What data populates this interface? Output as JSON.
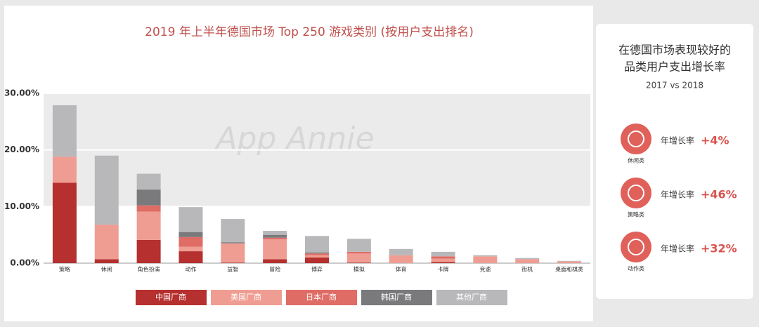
{
  "chart_data": {
    "type": "stacked_bar",
    "title": "2019 年上半年德国市场 Top 250 游戏类别 (按用户支出排名)",
    "watermark": "App Annie",
    "categories": [
      "策略",
      "休闲",
      "角色扮演",
      "动作",
      "益智",
      "冒险",
      "博弈",
      "模拟",
      "体育",
      "卡牌",
      "竞速",
      "街机",
      "桌面和棋类"
    ],
    "series": [
      {
        "name": "中国厂商",
        "color": "#b5302e",
        "values": [
          14.2,
          0.7,
          4.1,
          2.1,
          0.1,
          0.7,
          1.0,
          0.1,
          0,
          0.2,
          0,
          0,
          0
        ]
      },
      {
        "name": "美国厂商",
        "color": "#ef9d93",
        "values": [
          4.6,
          6.1,
          5.0,
          0.8,
          3.4,
          3.5,
          0.4,
          1.6,
          1.4,
          0.6,
          1.2,
          0.7,
          0.3
        ]
      },
      {
        "name": "日本厂商",
        "color": "#e06c66",
        "values": [
          0,
          0,
          1.1,
          1.7,
          0,
          0.3,
          0.3,
          0.3,
          0,
          0.4,
          0,
          0,
          0
        ]
      },
      {
        "name": "韩国厂商",
        "color": "#7a7a7c",
        "values": [
          0,
          0,
          2.8,
          0.9,
          0.2,
          0.5,
          0.2,
          0,
          0,
          0,
          0,
          0,
          0
        ]
      },
      {
        "name": "其他厂商",
        "color": "#b8b8ba",
        "values": [
          9.1,
          12.2,
          2.8,
          4.4,
          4.1,
          0.7,
          2.9,
          2.3,
          1.1,
          0.8,
          0.2,
          0.2,
          0.1
        ]
      }
    ],
    "ylim": [
      0,
      30
    ],
    "yticks": [
      {
        "value": 0,
        "label": "0.00%"
      },
      {
        "value": 10,
        "label": "10.00%"
      },
      {
        "value": 20,
        "label": "20.00%"
      },
      {
        "value": 30,
        "label": "30.00%"
      }
    ],
    "grid": true
  },
  "side_panel": {
    "title_lines": [
      "在德国市场表现较好的",
      "品类用户支出增长率"
    ],
    "subtitle": "2017 vs 2018",
    "items": [
      {
        "icon_label": "休闲类",
        "label": "年增长率",
        "growth": "+4%"
      },
      {
        "icon_label": "策略类",
        "label": "年增长率",
        "growth": "+46%"
      },
      {
        "icon_label": "动作类",
        "label": "年增长率",
        "growth": "+32%"
      }
    ]
  }
}
